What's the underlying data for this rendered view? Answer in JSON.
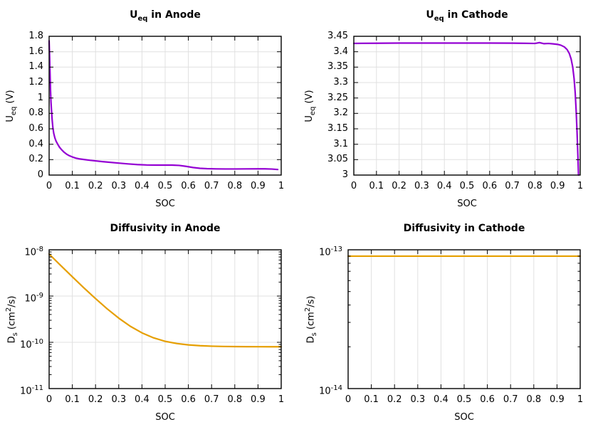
{
  "style": {
    "background": "#ffffff",
    "grid_color": "#e0e0e0",
    "axis_color": "#000000",
    "anode_ocv_color": "#9400d3",
    "cathode_ocv_color": "#9400d3",
    "anode_diff_color": "#e69f00",
    "cathode_diff_color": "#e69f00"
  },
  "chart_data": [
    {
      "id": "ueq-anode",
      "type": "line",
      "title_segments": [
        {
          "t": "U"
        },
        {
          "t": "eq",
          "sub": true
        },
        {
          "t": " in Anode"
        }
      ],
      "xlabel": "SOC",
      "ylabel_segments": [
        {
          "t": "U"
        },
        {
          "t": "eq",
          "sub": true
        },
        {
          "t": " (V)"
        }
      ],
      "color": "#9400d3",
      "xscale": "linear",
      "yscale": "linear",
      "grid": true,
      "legend": "none",
      "xlim": [
        0,
        1
      ],
      "ylim": [
        0,
        1.8
      ],
      "xtick_values": [
        0,
        0.1,
        0.2,
        0.3,
        0.4,
        0.5,
        0.6,
        0.7,
        0.8,
        0.9,
        1
      ],
      "xtick_labels": [
        "0",
        "0.1",
        "0.2",
        "0.3",
        "0.4",
        "0.5",
        "0.6",
        "0.7",
        "0.8",
        "0.9",
        "1"
      ],
      "ytick_values": [
        0,
        0.2,
        0.4,
        0.6,
        0.8,
        1,
        1.2,
        1.4,
        1.6,
        1.8
      ],
      "ytick_labels": [
        "0",
        "0.2",
        "0.4",
        "0.6",
        "0.8",
        "1",
        "1.2",
        "1.4",
        "1.6",
        "1.8"
      ],
      "points": [
        [
          0,
          1.74
        ],
        [
          0.002,
          1.55
        ],
        [
          0.004,
          1.32
        ],
        [
          0.006,
          1.1
        ],
        [
          0.008,
          0.95
        ],
        [
          0.01,
          0.85
        ],
        [
          0.013,
          0.72
        ],
        [
          0.016,
          0.62
        ],
        [
          0.02,
          0.54
        ],
        [
          0.025,
          0.48
        ],
        [
          0.03,
          0.44
        ],
        [
          0.037,
          0.4
        ],
        [
          0.045,
          0.36
        ],
        [
          0.055,
          0.325
        ],
        [
          0.065,
          0.295
        ],
        [
          0.075,
          0.272
        ],
        [
          0.085,
          0.254
        ],
        [
          0.1,
          0.235
        ],
        [
          0.115,
          0.22
        ],
        [
          0.13,
          0.21
        ],
        [
          0.15,
          0.202
        ],
        [
          0.175,
          0.192
        ],
        [
          0.2,
          0.184
        ],
        [
          0.23,
          0.174
        ],
        [
          0.26,
          0.166
        ],
        [
          0.3,
          0.155
        ],
        [
          0.34,
          0.145
        ],
        [
          0.38,
          0.136
        ],
        [
          0.42,
          0.131
        ],
        [
          0.46,
          0.129
        ],
        [
          0.5,
          0.129
        ],
        [
          0.53,
          0.129
        ],
        [
          0.56,
          0.125
        ],
        [
          0.59,
          0.113
        ],
        [
          0.62,
          0.098
        ],
        [
          0.65,
          0.088
        ],
        [
          0.68,
          0.083
        ],
        [
          0.72,
          0.08
        ],
        [
          0.76,
          0.079
        ],
        [
          0.8,
          0.079
        ],
        [
          0.85,
          0.08
        ],
        [
          0.9,
          0.081
        ],
        [
          0.93,
          0.081
        ],
        [
          0.96,
          0.078
        ],
        [
          0.985,
          0.072
        ]
      ]
    },
    {
      "id": "ueq-cathode",
      "type": "line",
      "title_segments": [
        {
          "t": "U"
        },
        {
          "t": "eq",
          "sub": true
        },
        {
          "t": " in Cathode"
        }
      ],
      "xlabel": "SOC",
      "ylabel_segments": [
        {
          "t": "U"
        },
        {
          "t": "eq",
          "sub": true
        },
        {
          "t": " (V)"
        }
      ],
      "color": "#9400d3",
      "xscale": "linear",
      "yscale": "linear",
      "grid": true,
      "legend": "none",
      "xlim": [
        0,
        1
      ],
      "ylim": [
        3,
        3.45
      ],
      "xtick_values": [
        0,
        0.1,
        0.2,
        0.3,
        0.4,
        0.5,
        0.6,
        0.7,
        0.8,
        0.9,
        1
      ],
      "xtick_labels": [
        "0",
        "0.1",
        "0.2",
        "0.3",
        "0.4",
        "0.5",
        "0.6",
        "0.7",
        "0.8",
        "0.9",
        "1"
      ],
      "ytick_values": [
        3,
        3.05,
        3.1,
        3.15,
        3.2,
        3.25,
        3.3,
        3.35,
        3.4,
        3.45
      ],
      "ytick_labels": [
        "3",
        "3.05",
        "3.1",
        "3.15",
        "3.2",
        "3.25",
        "3.3",
        "3.35",
        "3.4",
        "3.45"
      ],
      "points": [
        [
          0,
          3.427
        ],
        [
          0.1,
          3.4275
        ],
        [
          0.2,
          3.428
        ],
        [
          0.3,
          3.428
        ],
        [
          0.4,
          3.428
        ],
        [
          0.5,
          3.428
        ],
        [
          0.6,
          3.428
        ],
        [
          0.7,
          3.4278
        ],
        [
          0.76,
          3.4272
        ],
        [
          0.8,
          3.4268
        ],
        [
          0.82,
          3.4295
        ],
        [
          0.84,
          3.426
        ],
        [
          0.86,
          3.4268
        ],
        [
          0.88,
          3.4255
        ],
        [
          0.9,
          3.4238
        ],
        [
          0.915,
          3.421
        ],
        [
          0.93,
          3.4155
        ],
        [
          0.942,
          3.407
        ],
        [
          0.952,
          3.394
        ],
        [
          0.96,
          3.376
        ],
        [
          0.967,
          3.35
        ],
        [
          0.973,
          3.313
        ],
        [
          0.978,
          3.266
        ],
        [
          0.982,
          3.21
        ],
        [
          0.986,
          3.14
        ],
        [
          0.99,
          3.06
        ],
        [
          0.9925,
          3.0
        ]
      ]
    },
    {
      "id": "ds-anode",
      "type": "line",
      "title_segments": [
        {
          "t": "Diffusivity in Anode"
        }
      ],
      "xlabel": "SOC",
      "ylabel_segments": [
        {
          "t": "D"
        },
        {
          "t": "s",
          "sub": true
        },
        {
          "t": " (cm"
        },
        {
          "t": "2",
          "sup": true
        },
        {
          "t": "/s)"
        }
      ],
      "color": "#e69f00",
      "xscale": "linear",
      "yscale": "log",
      "grid": true,
      "legend": "none",
      "xlim": [
        0,
        1
      ],
      "ylim": [
        1e-11,
        1e-08
      ],
      "xtick_values": [
        0,
        0.1,
        0.2,
        0.3,
        0.4,
        0.5,
        0.6,
        0.7,
        0.8,
        0.9,
        1
      ],
      "xtick_labels": [
        "0",
        "0.1",
        "0.2",
        "0.3",
        "0.4",
        "0.5",
        "0.6",
        "0.7",
        "0.8",
        "0.9",
        "1"
      ],
      "ytick_values": [
        1e-11,
        1e-10,
        1e-09,
        1e-08
      ],
      "ytick_labels": [
        "10^-11",
        "10^-10",
        "10^-9",
        "10^-8"
      ],
      "points": [
        [
          0,
          8.08e-09
        ],
        [
          0.05,
          4.58e-09
        ],
        [
          0.1,
          2.61e-09
        ],
        [
          0.15,
          1.5e-09
        ],
        [
          0.2,
          8.8e-10
        ],
        [
          0.25,
          5.3e-10
        ],
        [
          0.3,
          3.33e-10
        ],
        [
          0.35,
          2.22e-10
        ],
        [
          0.4,
          1.6e-10
        ],
        [
          0.45,
          1.25e-10
        ],
        [
          0.5,
          1.05e-10
        ],
        [
          0.55,
          9.42e-11
        ],
        [
          0.6,
          8.8e-11
        ],
        [
          0.65,
          8.45e-11
        ],
        [
          0.7,
          8.25e-11
        ],
        [
          0.75,
          8.14e-11
        ],
        [
          0.8,
          8.08e-11
        ],
        [
          0.85,
          8.05e-11
        ],
        [
          0.9,
          8.03e-11
        ],
        [
          0.95,
          8.02e-11
        ],
        [
          1,
          8.01e-11
        ]
      ]
    },
    {
      "id": "ds-cathode",
      "type": "line",
      "title_segments": [
        {
          "t": "Diffusivity in Cathode"
        }
      ],
      "xlabel": "SOC",
      "ylabel_segments": [
        {
          "t": "D"
        },
        {
          "t": "s",
          "sub": true
        },
        {
          "t": " (cm"
        },
        {
          "t": "2",
          "sup": true
        },
        {
          "t": "/s)"
        }
      ],
      "color": "#e69f00",
      "xscale": "linear",
      "yscale": "log",
      "grid": true,
      "legend": "none",
      "xlim": [
        0,
        1
      ],
      "ylim": [
        1e-14,
        1e-13
      ],
      "xtick_values": [
        0,
        0.1,
        0.2,
        0.3,
        0.4,
        0.5,
        0.6,
        0.7,
        0.8,
        0.9,
        1
      ],
      "xtick_labels": [
        "0",
        "0.1",
        "0.2",
        "0.3",
        "0.4",
        "0.5",
        "0.6",
        "0.7",
        "0.8",
        "0.9",
        "1"
      ],
      "ytick_values": [
        1e-14,
        1e-13
      ],
      "ytick_labels": [
        "10^-14",
        "10^-13"
      ],
      "points": [
        [
          0,
          9e-14
        ],
        [
          1,
          9e-14
        ]
      ]
    }
  ]
}
